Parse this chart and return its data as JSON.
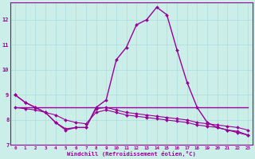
{
  "xlabel": "Windchill (Refroidissement éolien,°C)",
  "background_color": "#cceee8",
  "grid_color": "#aadddd",
  "line_color": "#990099",
  "xlim": [
    -0.5,
    23.5
  ],
  "ylim": [
    7.0,
    12.7
  ],
  "yticks": [
    7,
    8,
    9,
    10,
    11,
    12
  ],
  "xticks": [
    0,
    1,
    2,
    3,
    4,
    5,
    6,
    7,
    8,
    9,
    10,
    11,
    12,
    13,
    14,
    15,
    16,
    17,
    18,
    19,
    20,
    21,
    22,
    23
  ],
  "series": [
    {
      "y": [
        9.0,
        8.7,
        8.5,
        8.3,
        7.9,
        7.6,
        7.7,
        7.7,
        8.5,
        8.8,
        10.4,
        10.9,
        11.8,
        12.0,
        12.5,
        12.2,
        10.8,
        9.5,
        8.5,
        7.9,
        7.7,
        7.6,
        7.5,
        7.4
      ],
      "marker": true,
      "linewidth": 1.0
    },
    {
      "y": [
        8.5,
        8.5,
        8.5,
        8.5,
        8.5,
        8.5,
        8.5,
        8.5,
        8.5,
        8.5,
        8.5,
        8.5,
        8.5,
        8.5,
        8.5,
        8.5,
        8.5,
        8.5,
        8.5,
        8.5,
        8.5,
        8.5,
        8.5,
        8.5
      ],
      "marker": false,
      "linewidth": 1.0
    },
    {
      "y": [
        9.0,
        8.7,
        8.5,
        8.3,
        7.9,
        7.65,
        7.7,
        7.7,
        8.45,
        8.5,
        8.4,
        8.3,
        8.25,
        8.2,
        8.15,
        8.1,
        8.05,
        8.0,
        7.9,
        7.85,
        7.8,
        7.75,
        7.7,
        7.6
      ],
      "marker": true,
      "linewidth": 0.8
    },
    {
      "y": [
        8.5,
        8.45,
        8.4,
        8.3,
        8.2,
        8.0,
        7.9,
        7.85,
        8.3,
        8.4,
        8.3,
        8.2,
        8.15,
        8.1,
        8.05,
        8.0,
        7.95,
        7.9,
        7.8,
        7.75,
        7.7,
        7.6,
        7.55,
        7.4
      ],
      "marker": true,
      "linewidth": 0.8
    }
  ]
}
